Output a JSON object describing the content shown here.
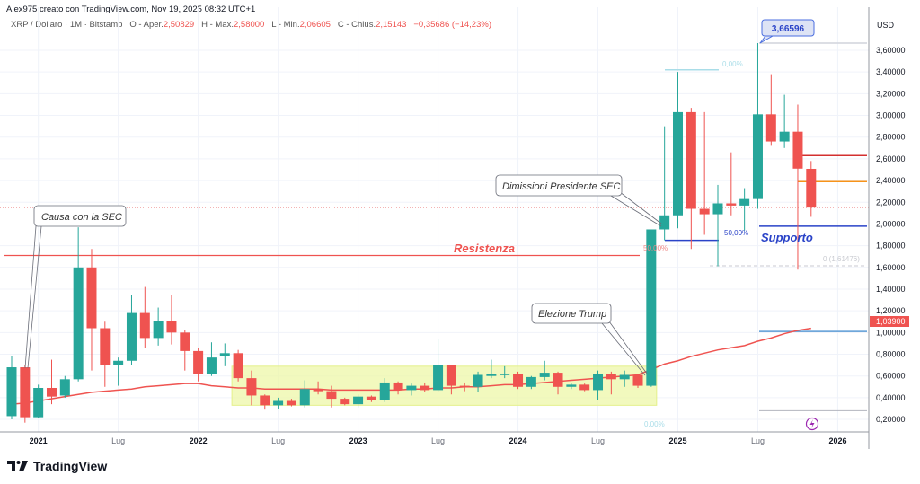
{
  "header": {
    "credit": "Alex975 creato con TradingView.com, Nov 19, 2025 08:32 UTC+1",
    "symbol": "XRP / Dollaro · 1M · Bitstamp",
    "open_label": "O - Aper.",
    "open": "2,50829",
    "high_label": "H - Max.",
    "high": "2,58000",
    "low_label": "L - Min.",
    "low": "2,06605",
    "close_label": "C - Chius.",
    "close": "2,15143",
    "change": "−0,35686 (−14,23%)"
  },
  "axis": {
    "currency": "USD",
    "price_ticks": [
      "3,60000",
      "3,40000",
      "3,20000",
      "3,00000",
      "2,80000",
      "2,60000",
      "2,40000",
      "2,20000",
      "2,00000",
      "1,80000",
      "1,60000",
      "1,40000",
      "1,20000",
      "1,00000",
      "0,80000",
      "0,60000",
      "0,40000",
      "0,20000"
    ],
    "time_ticks": [
      {
        "label": "2021",
        "bold": true,
        "month": "2021-01"
      },
      {
        "label": "Lug",
        "bold": false,
        "month": "2021-07"
      },
      {
        "label": "2022",
        "bold": true,
        "month": "2022-01"
      },
      {
        "label": "Lug",
        "bold": false,
        "month": "2022-07"
      },
      {
        "label": "2023",
        "bold": true,
        "month": "2023-01"
      },
      {
        "label": "Lug",
        "bold": false,
        "month": "2023-07"
      },
      {
        "label": "2024",
        "bold": true,
        "month": "2024-01"
      },
      {
        "label": "Lug",
        "bold": false,
        "month": "2024-07"
      },
      {
        "label": "2025",
        "bold": true,
        "month": "2025-01"
      },
      {
        "label": "Lug",
        "bold": false,
        "month": "2025-07"
      },
      {
        "label": "2026",
        "bold": true,
        "month": "2026-01"
      }
    ]
  },
  "colors": {
    "up": "#26a69a",
    "down": "#ef5350",
    "ma": "#ef5350",
    "support": "#2a43c8",
    "resistance": "#ef5350",
    "orange": "#f7931a",
    "highlight": "#eef7a8"
  },
  "annotations": {
    "high_label": "3,66596",
    "last_ma_label": "1,03900",
    "resistance_label": "Resistenza",
    "support_label": "Supporto",
    "fib_top": "0,00%",
    "fib_mid_blue": "50,00%",
    "fib_mid_red": "50,00%",
    "fib_bottom": "0,00%",
    "fib_zero": "0 (1,61476)",
    "callout_sec": "Causa con la SEC",
    "callout_resign": "Dimissioni Presidente SEC",
    "callout_trump": "Elezione Trump"
  },
  "chart_data": {
    "type": "candlestick",
    "symbol": "XRP / Dollaro",
    "interval": "1M",
    "ylim": [
      0.1,
      3.8
    ],
    "start_month": "2020-11",
    "ohlc": [
      [
        0.23,
        0.78,
        0.2,
        0.68
      ],
      [
        0.68,
        0.7,
        0.17,
        0.22
      ],
      [
        0.22,
        0.52,
        0.21,
        0.49
      ],
      [
        0.49,
        0.75,
        0.34,
        0.41
      ],
      [
        0.42,
        0.6,
        0.4,
        0.57
      ],
      [
        0.57,
        1.97,
        0.55,
        1.6
      ],
      [
        1.6,
        1.77,
        0.65,
        1.04
      ],
      [
        1.04,
        1.1,
        0.5,
        0.7
      ],
      [
        0.7,
        0.77,
        0.51,
        0.74
      ],
      [
        0.74,
        1.35,
        0.7,
        1.18
      ],
      [
        1.18,
        1.42,
        0.86,
        0.95
      ],
      [
        0.95,
        1.23,
        0.88,
        1.11
      ],
      [
        1.11,
        1.35,
        0.89,
        1.0
      ],
      [
        1.0,
        1.02,
        0.65,
        0.83
      ],
      [
        0.83,
        0.86,
        0.55,
        0.62
      ],
      [
        0.62,
        0.91,
        0.6,
        0.77
      ],
      [
        0.78,
        0.9,
        0.69,
        0.81
      ],
      [
        0.81,
        0.84,
        0.55,
        0.58
      ],
      [
        0.58,
        0.65,
        0.33,
        0.42
      ],
      [
        0.42,
        0.43,
        0.29,
        0.33
      ],
      [
        0.33,
        0.4,
        0.3,
        0.37
      ],
      [
        0.37,
        0.39,
        0.32,
        0.33
      ],
      [
        0.33,
        0.56,
        0.31,
        0.48
      ],
      [
        0.48,
        0.55,
        0.43,
        0.46
      ],
      [
        0.46,
        0.51,
        0.31,
        0.39
      ],
      [
        0.39,
        0.4,
        0.33,
        0.34
      ],
      [
        0.34,
        0.43,
        0.31,
        0.41
      ],
      [
        0.41,
        0.42,
        0.36,
        0.38
      ],
      [
        0.38,
        0.58,
        0.36,
        0.54
      ],
      [
        0.54,
        0.55,
        0.43,
        0.47
      ],
      [
        0.47,
        0.53,
        0.42,
        0.51
      ],
      [
        0.51,
        0.54,
        0.45,
        0.47
      ],
      [
        0.47,
        0.94,
        0.45,
        0.7
      ],
      [
        0.7,
        0.7,
        0.43,
        0.51
      ],
      [
        0.51,
        0.54,
        0.46,
        0.5
      ],
      [
        0.5,
        0.64,
        0.45,
        0.61
      ],
      [
        0.6,
        0.75,
        0.58,
        0.62
      ],
      [
        0.61,
        0.69,
        0.58,
        0.62
      ],
      [
        0.62,
        0.64,
        0.48,
        0.5
      ],
      [
        0.5,
        0.6,
        0.48,
        0.59
      ],
      [
        0.59,
        0.74,
        0.56,
        0.63
      ],
      [
        0.63,
        0.64,
        0.43,
        0.5
      ],
      [
        0.5,
        0.53,
        0.48,
        0.52
      ],
      [
        0.52,
        0.53,
        0.46,
        0.47
      ],
      [
        0.47,
        0.65,
        0.38,
        0.62
      ],
      [
        0.62,
        0.64,
        0.43,
        0.57
      ],
      [
        0.57,
        0.65,
        0.5,
        0.61
      ],
      [
        0.61,
        0.62,
        0.49,
        0.51
      ],
      [
        0.51,
        1.95,
        0.5,
        1.95
      ],
      [
        1.95,
        2.9,
        1.85,
        2.08
      ],
      [
        2.08,
        3.4,
        1.96,
        3.03
      ],
      [
        3.03,
        3.07,
        1.77,
        2.14
      ],
      [
        2.14,
        3.03,
        1.9,
        2.09
      ],
      [
        2.09,
        2.36,
        1.61,
        2.19
      ],
      [
        2.19,
        2.66,
        2.08,
        2.17
      ],
      [
        2.17,
        2.33,
        1.94,
        2.23
      ],
      [
        2.23,
        3.66596,
        2.14,
        3.01
      ],
      [
        3.01,
        3.38,
        2.72,
        2.76
      ],
      [
        2.76,
        3.19,
        2.7,
        2.85
      ],
      [
        2.85,
        3.1,
        1.58,
        2.51
      ],
      [
        2.50829,
        2.58,
        2.06605,
        2.15143
      ]
    ],
    "moving_average": [
      0.34,
      0.35,
      0.37,
      0.39,
      0.41,
      0.43,
      0.45,
      0.46,
      0.47,
      0.48,
      0.5,
      0.51,
      0.52,
      0.53,
      0.53,
      0.51,
      0.5,
      0.49,
      0.49,
      0.48,
      0.48,
      0.48,
      0.48,
      0.48,
      0.47,
      0.47,
      0.47,
      0.47,
      0.47,
      0.47,
      0.48,
      0.48,
      0.49,
      0.49,
      0.5,
      0.5,
      0.51,
      0.52,
      0.52,
      0.53,
      0.54,
      0.55,
      0.56,
      0.57,
      0.58,
      0.59,
      0.6,
      0.61,
      0.66,
      0.71,
      0.74,
      0.78,
      0.81,
      0.84,
      0.86,
      0.88,
      0.92,
      0.95,
      0.99,
      1.02,
      1.039
    ],
    "levels": {
      "resistance": 1.71,
      "support": 1.98,
      "red_level": 2.63,
      "orange_level": 2.39,
      "current_price": 2.15,
      "fib_top": 3.42,
      "fib_mid": 1.85,
      "fib_zero": 1.61476,
      "high": 3.66596,
      "light_blue_level": 1.01,
      "gray_low_level": 0.28
    },
    "range_box": {
      "from": "2022-04",
      "to": "2024-11",
      "low": 0.33,
      "high": 0.69
    }
  }
}
